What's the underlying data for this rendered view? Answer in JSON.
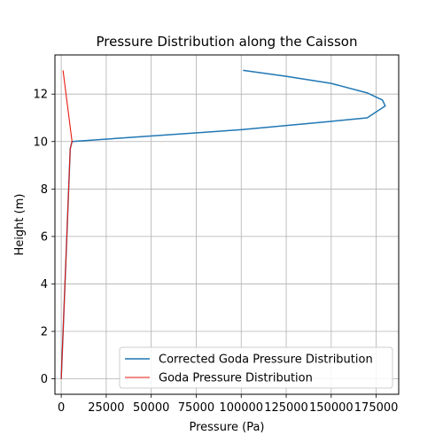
{
  "chart_data": {
    "type": "line",
    "title": "Pressure Distribution along the Caisson",
    "xlabel": "Pressure (Pa)",
    "ylabel": "Height (m)",
    "xlim": [
      -3500,
      187500
    ],
    "ylim": [
      -0.65,
      13.65
    ],
    "xticks": [
      0,
      25000,
      50000,
      75000,
      100000,
      125000,
      150000,
      175000
    ],
    "yticks": [
      0,
      2,
      4,
      6,
      8,
      10,
      12
    ],
    "grid": true,
    "legend": "lower-right",
    "series": [
      {
        "name": "Corrected Goda Pressure Distribution",
        "color": "#1f77b4",
        "x": [
          0,
          2600,
          5000,
          6000,
          100000,
          150000,
          170000,
          180000,
          178500,
          170000,
          150000,
          125000,
          101000
        ],
        "y": [
          0,
          5,
          9.7,
          10,
          10.5,
          10.85,
          11,
          11.5,
          11.75,
          12.05,
          12.45,
          12.75,
          13
        ]
      },
      {
        "name": "Goda Pressure Distribution",
        "color": "#e8190e",
        "x": [
          0,
          2600,
          5000,
          6000,
          1000
        ],
        "y": [
          0,
          5,
          9.7,
          10,
          13
        ]
      }
    ]
  }
}
